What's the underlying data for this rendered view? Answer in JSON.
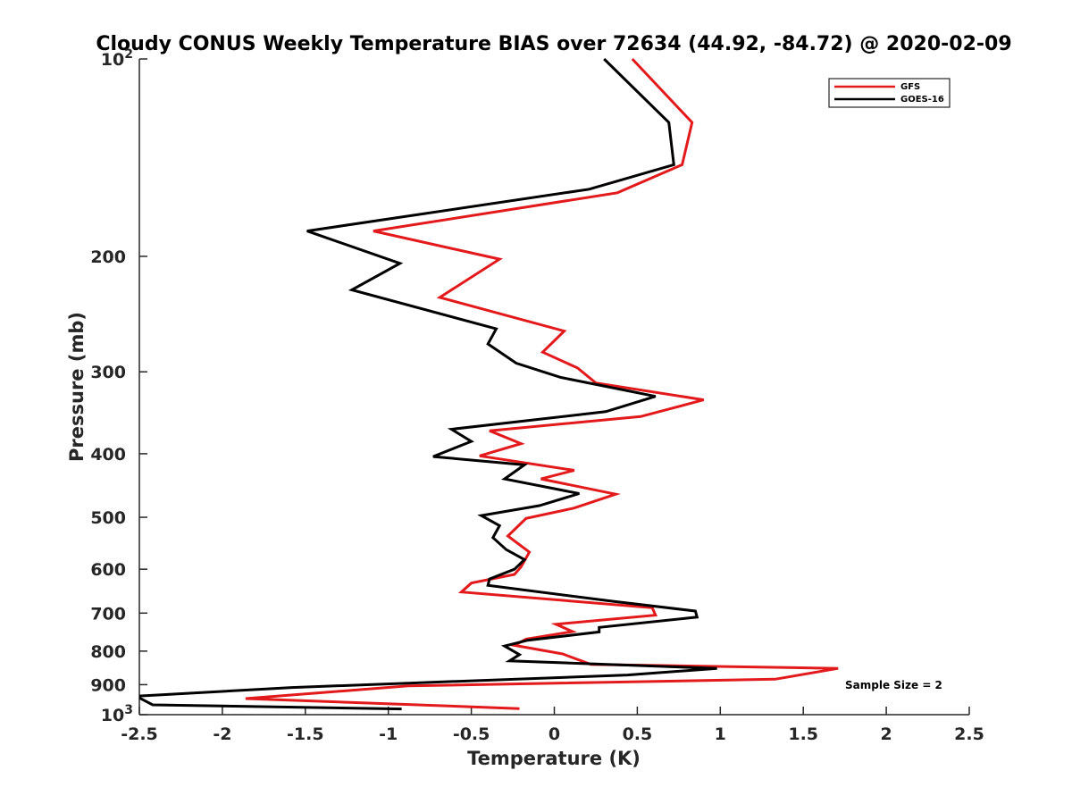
{
  "chart_data": {
    "type": "line",
    "title": "Cloudy CONUS Weekly Temperature BIAS over 72634 (44.92, -84.72) @ 2020-02-09",
    "xlabel": "Temperature (K)",
    "ylabel": "Pressure (mb)",
    "xlim": [
      -2.5,
      2.5
    ],
    "ylim": [
      100,
      1000
    ],
    "y_scale": "log",
    "y_reversed": true,
    "grid": false,
    "legend_position": "top-right",
    "x_ticks": [
      -2.5,
      -2,
      -1.5,
      -1,
      -0.5,
      0,
      0.5,
      1,
      1.5,
      2,
      2.5
    ],
    "x_tick_labels": [
      "-2.5",
      "-2",
      "-1.5",
      "-1",
      "-0.5",
      "0",
      "0.5",
      "1",
      "1.5",
      "2",
      "2.5"
    ],
    "y_ticks": [
      100,
      200,
      300,
      400,
      500,
      600,
      700,
      800,
      900,
      1000
    ],
    "y_tick_labels": [
      {
        "base": "10",
        "exp": "2"
      },
      {
        "text": "200"
      },
      {
        "text": "300"
      },
      {
        "text": "400"
      },
      {
        "text": "500"
      },
      {
        "text": "600"
      },
      {
        "text": "700"
      },
      {
        "text": "800"
      },
      {
        "text": "900"
      },
      {
        "base": "10",
        "exp": "3"
      }
    ],
    "annotation": "Sample Size = 2",
    "series": [
      {
        "name": "GFS",
        "color": "#e31a1c",
        "points": [
          [
            0.47,
            100
          ],
          [
            0.83,
            125
          ],
          [
            0.77,
            145
          ],
          [
            0.38,
            160
          ],
          [
            -1.09,
            183
          ],
          [
            -0.33,
            202
          ],
          [
            -0.69,
            231
          ],
          [
            0.06,
            260
          ],
          [
            -0.07,
            280
          ],
          [
            0.14,
            296
          ],
          [
            0.25,
            312
          ],
          [
            0.9,
            331
          ],
          [
            0.52,
            351
          ],
          [
            -0.39,
            369
          ],
          [
            -0.2,
            386
          ],
          [
            -0.45,
            403
          ],
          [
            0.12,
            424
          ],
          [
            -0.08,
            437
          ],
          [
            0.37,
            461
          ],
          [
            0.12,
            484
          ],
          [
            -0.17,
            502
          ],
          [
            -0.28,
            534
          ],
          [
            -0.15,
            565
          ],
          [
            -0.2,
            595
          ],
          [
            -0.24,
            611
          ],
          [
            -0.5,
            630
          ],
          [
            -0.56,
            650
          ],
          [
            0.59,
            687
          ],
          [
            0.61,
            705
          ],
          [
            0.01,
            728
          ],
          [
            0.11,
            747
          ],
          [
            -0.17,
            767
          ],
          [
            -0.24,
            784
          ],
          [
            0.05,
            808
          ],
          [
            0.22,
            838
          ],
          [
            1.71,
            850
          ],
          [
            1.33,
            883
          ],
          [
            -0.88,
            904
          ],
          [
            -1.86,
            945
          ],
          [
            -0.21,
            979
          ]
        ]
      },
      {
        "name": "GOES-16",
        "color": "#000000",
        "points": [
          [
            0.3,
            100
          ],
          [
            0.69,
            125
          ],
          [
            0.72,
            145
          ],
          [
            0.21,
            158
          ],
          [
            -1.49,
            183
          ],
          [
            -0.93,
            205
          ],
          [
            -1.22,
            225
          ],
          [
            -0.35,
            258
          ],
          [
            -0.4,
            272
          ],
          [
            -0.23,
            291
          ],
          [
            0.04,
            306
          ],
          [
            0.61,
            327
          ],
          [
            0.31,
            345
          ],
          [
            -0.62,
            367
          ],
          [
            -0.5,
            383
          ],
          [
            -0.73,
            404
          ],
          [
            -0.18,
            416
          ],
          [
            -0.3,
            437
          ],
          [
            0.15,
            460
          ],
          [
            -0.09,
            480
          ],
          [
            -0.44,
            497
          ],
          [
            -0.33,
            515
          ],
          [
            -0.37,
            537
          ],
          [
            -0.29,
            560
          ],
          [
            -0.18,
            580
          ],
          [
            -0.24,
            600
          ],
          [
            -0.39,
            621
          ],
          [
            -0.4,
            635
          ],
          [
            0.36,
            672
          ],
          [
            0.85,
            695
          ],
          [
            0.86,
            710
          ],
          [
            0.27,
            736
          ],
          [
            0.27,
            748
          ],
          [
            -0.16,
            770
          ],
          [
            -0.3,
            786
          ],
          [
            -0.21,
            810
          ],
          [
            -0.27,
            828
          ],
          [
            0.98,
            850
          ],
          [
            0.44,
            870
          ],
          [
            -1.58,
            909
          ],
          [
            -2.52,
            937
          ],
          [
            -2.42,
            966
          ],
          [
            -0.92,
            980
          ]
        ]
      }
    ]
  }
}
